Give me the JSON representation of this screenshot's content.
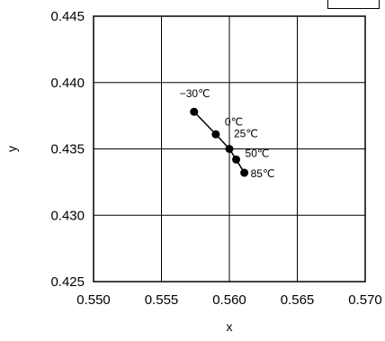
{
  "chart_data": {
    "type": "scatter",
    "title": "",
    "xlabel": "x",
    "ylabel": "y",
    "xlim": [
      0.55,
      0.57
    ],
    "ylim": [
      0.425,
      0.445
    ],
    "x_ticks": [
      0.55,
      0.555,
      0.56,
      0.565,
      0.57
    ],
    "y_ticks": [
      0.425,
      0.43,
      0.435,
      0.44,
      0.445
    ],
    "x_tick_labels": [
      "0.550",
      "0.555",
      "0.560",
      "0.565",
      "0.570"
    ],
    "y_tick_labels": [
      "0.425",
      "0.430",
      "0.435",
      "0.440",
      "0.445"
    ],
    "grid": true,
    "legend": "none",
    "marker": "filled-circle",
    "connected": true,
    "points": [
      {
        "label": "−30℃",
        "x": 0.5574,
        "y": 0.4378
      },
      {
        "label": "0℃",
        "x": 0.559,
        "y": 0.4361
      },
      {
        "label": "25℃",
        "x": 0.56,
        "y": 0.435
      },
      {
        "label": "50℃",
        "x": 0.5605,
        "y": 0.4342
      },
      {
        "label": "85℃",
        "x": 0.5611,
        "y": 0.4332
      }
    ],
    "colors": {
      "marker": "#000000",
      "line": "#000000",
      "grid": "#000000",
      "background": "#ffffff"
    }
  }
}
